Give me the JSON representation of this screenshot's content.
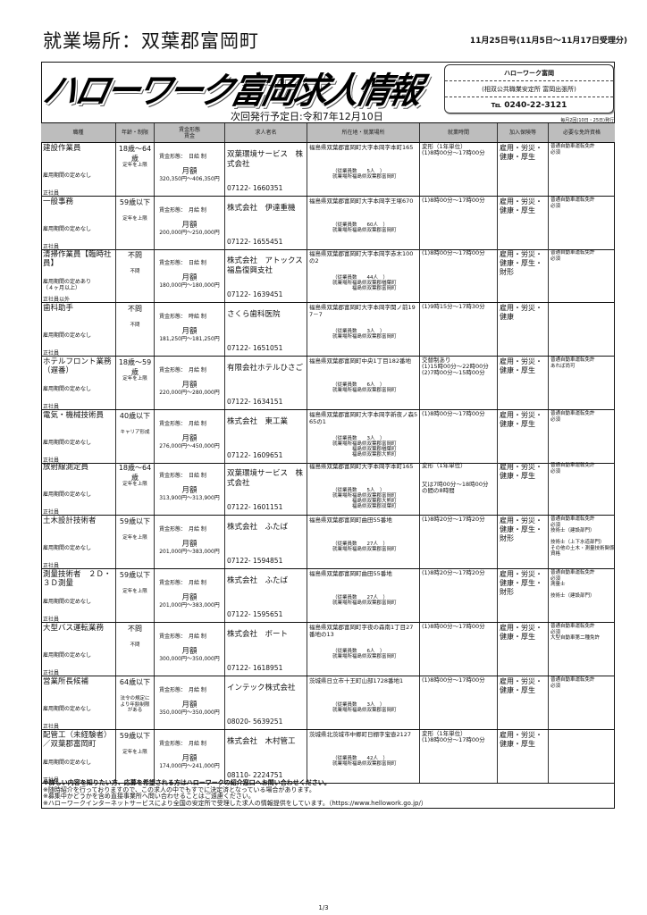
{
  "place_title": "就業場所：双葉郡富岡町",
  "issue": "11月25日号(11月5日～11月17日受理分)",
  "logo_text": "ハローワーク富岡求人情報",
  "next_issue": "次回発行予定日:令和7年12月10日",
  "office": {
    "name": "ハローワーク富岡",
    "sub": "(相双公共職業安定所 富岡出張所)",
    "tel": "℡ 0240-22-3121"
  },
  "frequency": "毎月2回(10日・25日)発行",
  "headers": [
    "職種",
    "年齢・制限",
    "賃金形態\n賃金",
    "求人者名",
    "所在地・就業場所",
    "就業時間",
    "加入保険等",
    "必要な免許資格"
  ],
  "labels": {
    "wage_monthly": "月額",
    "workplace": "就業場所"
  },
  "rows": [
    {
      "title": "建設作業員",
      "term": "雇用期間の定めなし",
      "type": "正社員",
      "age": "18歳～64歳",
      "age_note": "定年を上限",
      "wage_type": "賃金形態：　日給 制",
      "wage_range": "320,350円～406,350円",
      "company": "双葉環境サービス　株式会社",
      "phone": "07122- 1660351",
      "address": "福島県双葉郡富岡町大字本岡字本町165",
      "employees": "（従業員数　　5人　）",
      "workplaces": [
        "福島県双葉郡富岡町"
      ],
      "hours": [
        "変形（1年単位）",
        "(1)8時00分～17時00分"
      ],
      "insurance": "雇用・労災・健康・厚生",
      "license": [
        "普通自動車運転免許",
        "必須"
      ]
    },
    {
      "title": "一般事務",
      "term": "雇用期間の定めなし",
      "type": "正社員",
      "age": "59歳以下",
      "age_note": "定年を上限",
      "wage_type": "賃金形態：　月給 制",
      "wage_range": "200,000円～250,000円",
      "company": "株式会社　伊達重機",
      "phone": "07122- 1655451",
      "address": "福島県双葉郡富岡町大字本岡字王塚670",
      "employees": "（従業員数　　60人　）",
      "workplaces": [
        "福島県双葉郡富岡町"
      ],
      "hours": [
        "(1)8時00分～17時00分"
      ],
      "insurance": "雇用・労災・健康・厚生",
      "license": [
        "普通自動車運転免許",
        "必須"
      ]
    },
    {
      "title": "清掃作業員【臨時社員】",
      "term": "雇用期間の定めあり\n（４ヶ月以上）",
      "type": "正社員以外",
      "age": "不問",
      "age_note": "不問",
      "wage_type": "賃金形態：　日給 制",
      "wage_range": "180,000円～180,000円",
      "company": "株式会社　アトックス福島復興支社",
      "phone": "07122- 1639451",
      "address": "福島県双葉郡富岡町大字本岡字赤木100の2",
      "employees": "（従業員数　　44人　）",
      "workplaces": [
        "福島県双葉郡楢葉町",
        "福島県双葉郡富岡町"
      ],
      "hours": [
        "(1)8時00分～17時00分"
      ],
      "insurance": "雇用・労災・健康・厚生・財形",
      "license": [
        "普通自動車運転免許",
        "必須"
      ]
    },
    {
      "title": "歯科助手",
      "term": "雇用期間の定めなし",
      "type": "正社員",
      "age": "不問",
      "age_note": "不問",
      "wage_type": "賃金形態：　時給 制",
      "wage_range": "181,250円～181,250円",
      "company": "さくら歯科医院",
      "phone": "07122- 1651051",
      "address": "福島県双葉郡富岡町大字本岡字関ノ前197－7",
      "employees": "（従業員数　　3人　）",
      "workplaces": [
        "福島県双葉郡富岡町"
      ],
      "hours": [
        "(1)9時15分～17時30分"
      ],
      "insurance": "雇用・労災・健康",
      "license": []
    },
    {
      "title": "ホテルフロント業務（遅番）",
      "term": "雇用期間の定めなし",
      "type": "正社員",
      "age": "18歳～59歳",
      "age_note": "定年を上限",
      "wage_type": "賃金形態：　月給 制",
      "wage_range": "220,000円～280,000円",
      "company": "有限会社ホテルひさご",
      "phone": "07122- 1634151",
      "address": "福島県双葉郡富岡町中央1丁目182番地",
      "employees": "（従業員数　　6人　）",
      "workplaces": [
        "福島県双葉郡富岡町"
      ],
      "hours": [
        "交替制あり",
        "(1)15時00分～22時00分",
        "(2)7時00分～15時00分"
      ],
      "insurance": "雇用・労災・健康・厚生",
      "license": [
        "普通自動車運転免許",
        "あれば尚可"
      ]
    },
    {
      "title": "電気・機械技術員",
      "term": "雇用期間の定めなし",
      "type": "正社員",
      "age": "40歳以下",
      "age_note": "キャリア形成",
      "wage_type": "賃金形態：　月給 制",
      "wage_range": "276,000円～450,000円",
      "company": "株式会社　東工業",
      "phone": "07122- 1609651",
      "address": "福島県双葉郡富岡町大字本岡字新夜ノ森565の1",
      "employees": "（従業員数　　3人　）",
      "workplaces": [
        "福島県双葉郡富岡町",
        "福島県双葉郡楢葉町",
        "福島県双葉郡大熊町"
      ],
      "hours": [
        "(1)8時00分～17時00分"
      ],
      "insurance": "雇用・労災・健康・厚生",
      "license": [
        "普通自動車運転免許",
        "必須"
      ]
    },
    {
      "title": "放射線測定員",
      "term": "雇用期間の定めなし",
      "type": "正社員",
      "age": "18歳～64歳",
      "age_note": "定年を上限",
      "wage_type": "賃金形態：　日給 制",
      "wage_range": "313,900円～313,900円",
      "company": "双葉環境サービス　株式会社",
      "phone": "07122- 1601151",
      "address": "福島県双葉郡富岡町大字本岡字本町165",
      "employees": "（従業員数　　5人　）",
      "workplaces": [
        "福島県双葉郡富岡町",
        "福島県双葉郡大熊町",
        "福島県双葉郡双葉町"
      ],
      "hours": [
        "変形（1年単位）",
        "",
        "",
        "又は7時00分～18時00分",
        "の間の8時間"
      ],
      "insurance": "雇用・労災・健康・厚生",
      "license": [
        "普通自動車運転免許",
        "必須"
      ]
    },
    {
      "title": "土木設計技術者",
      "term": "雇用期間の定めなし",
      "type": "正社員",
      "age": "59歳以下",
      "age_note": "定年を上限",
      "wage_type": "賃金形態：　月給 制",
      "wage_range": "201,000円～383,000円",
      "company": "株式会社　ふたば",
      "phone": "07122- 1594851",
      "address": "福島県双葉郡富岡町曲田55番地",
      "employees": "（従業員数　　27人　）",
      "workplaces": [
        "福島県双葉郡富岡町"
      ],
      "hours": [
        "(1)8時20分～17時20分"
      ],
      "insurance": "雇用・労災・健康・厚生・財形",
      "license": [
        "普通自動車運転免許",
        "必須",
        "技術士（建設部門）",
        "",
        "技術士（上下水道部門）",
        "その他の土木・測量技術関係資格"
      ]
    },
    {
      "title": "測量技術者　２Ｄ・３Ｄ測量",
      "term": "雇用期間の定めなし",
      "type": "正社員",
      "age": "59歳以下",
      "age_note": "定年を上限",
      "wage_type": "賃金形態：　月給 制",
      "wage_range": "201,000円～383,000円",
      "company": "株式会社　ふたば",
      "phone": "07122- 1595651",
      "address": "福島県双葉郡富岡町曲田55番地",
      "employees": "（従業員数　　27人　）",
      "workplaces": [
        "福島県双葉郡富岡町"
      ],
      "hours": [
        "(1)8時20分～17時20分"
      ],
      "insurance": "雇用・労災・健康・厚生・財形",
      "license": [
        "普通自動車運転免許",
        "必須",
        "測量士",
        "",
        "技術士（建設部門）"
      ]
    },
    {
      "title": "大型バス運転業務",
      "term": "雇用期間の定めなし",
      "type": "正社員",
      "age": "不問",
      "age_note": "不問",
      "wage_type": "賃金形態：　月給 制",
      "wage_range": "300,000円～350,000円",
      "company": "株式会社　ボート",
      "phone": "07122- 1618951",
      "address": "福島県双葉郡富岡町字夜の森南1丁目27番地の13",
      "employees": "（従業員数　　6人　）",
      "workplaces": [
        "福島県双葉郡富岡町"
      ],
      "hours": [
        "(1)8時00分～17時00分"
      ],
      "insurance": "雇用・労災・健康・厚生",
      "license": [
        "普通自動車運転免許",
        "必須",
        "大型自動車第二種免許"
      ]
    },
    {
      "title": "営業所長候補",
      "term": "雇用期間の定めなし",
      "type": "正社員",
      "age": "64歳以下",
      "age_note": "法令の規定により年齢制限がある",
      "wage_type": "賃金形態：　月給 制",
      "wage_range": "350,000円～350,000円",
      "company": "インテック株式会社",
      "phone": "08020- 5639251",
      "address": "茨城県日立市十王町山部1728番地1",
      "employees": "（従業員数　　3人　）",
      "workplaces": [
        "福島県双葉郡富岡町"
      ],
      "hours": [
        "(1)8時00分～17時00分"
      ],
      "insurance": "雇用・労災・健康・厚生",
      "license": [
        "普通自動車運転免許",
        "必須"
      ]
    },
    {
      "title": "配管工（未経験者）／双葉郡富岡町",
      "term": "雇用期間の定めなし",
      "type": "正社員",
      "age": "59歳以下",
      "age_note": "定年を上限",
      "wage_type": "賃金形態：　月給 制",
      "wage_range": "174,000円～241,000円",
      "company": "株式会社　木村管工",
      "phone": "08110- 2224751",
      "address": "茨城県北茨城市中郷町日棚字宝壺2127",
      "employees": "（従業員数　　42人　）",
      "workplaces": [
        "福島県双葉郡富岡町"
      ],
      "hours": [
        "変形（1年単位）",
        "(1)8時00分～17時00分"
      ],
      "insurance": "雇用・労災・健康・厚生",
      "license": []
    }
  ],
  "footer": [
    "※詳しい内容を知りたい方、応募を希望される方はハローワークの紹介窓口へお問い合わせください。",
    "※随時紹介を行っておりますので、この求人の中でもすでに決定済となっている場合があります。",
    "※募集中かどうかを含め直接事業所へ問い合わせることはご遠慮ください。",
    "※ハローワークインターネットサービスにより全国の安定所で受理した求人の情報提供をしています。（https://www.hellowork.go.jp/）"
  ],
  "page": "1/3"
}
